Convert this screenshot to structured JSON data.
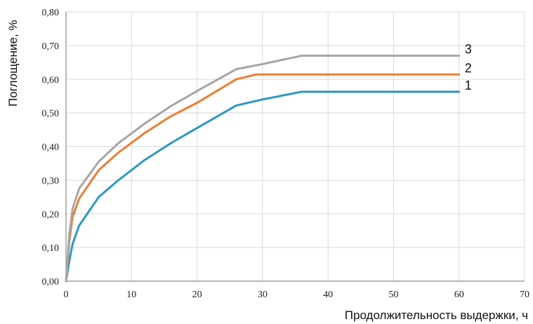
{
  "chart_data": {
    "type": "line",
    "title": "",
    "xlabel": "Продолжительность выдержки, ч",
    "ylabel": "Поглощение, %",
    "xlim": [
      0,
      70
    ],
    "ylim": [
      0,
      0.8
    ],
    "xticks": [
      0,
      10,
      20,
      30,
      40,
      50,
      60,
      70
    ],
    "yticks": [
      0,
      0.1,
      0.2,
      0.3,
      0.4,
      0.5,
      0.6,
      0.7,
      0.8
    ],
    "xtick_labels": [
      "0",
      "10",
      "20",
      "30",
      "40",
      "50",
      "60",
      "70"
    ],
    "ytick_labels": [
      "0,00",
      "0,10",
      "0,20",
      "0,30",
      "0,40",
      "0,50",
      "0,60",
      "0,70",
      "0,80"
    ],
    "grid": true,
    "legend": "end-of-line labels",
    "series": [
      {
        "name": "1",
        "color": "#2e97c4",
        "x": [
          0,
          0.5,
          1,
          2,
          5,
          8,
          12,
          16,
          20,
          26,
          30,
          36,
          40,
          50,
          60
        ],
        "y": [
          0,
          0.06,
          0.11,
          0.165,
          0.25,
          0.3,
          0.36,
          0.41,
          0.455,
          0.522,
          0.54,
          0.563,
          0.563,
          0.563,
          0.563
        ]
      },
      {
        "name": "2",
        "color": "#ed7d31",
        "x": [
          0,
          0.5,
          1,
          2,
          5,
          8,
          12,
          16,
          20,
          26,
          29,
          36,
          40,
          50,
          60
        ],
        "y": [
          0,
          0.12,
          0.19,
          0.245,
          0.33,
          0.382,
          0.44,
          0.49,
          0.53,
          0.6,
          0.614,
          0.614,
          0.614,
          0.614,
          0.614
        ]
      },
      {
        "name": "3",
        "color": "#a5a5a5",
        "x": [
          0,
          0.5,
          1,
          2,
          5,
          8,
          12,
          16,
          20,
          26,
          30,
          36,
          40,
          50,
          60
        ],
        "y": [
          0,
          0.14,
          0.215,
          0.275,
          0.355,
          0.41,
          0.468,
          0.52,
          0.565,
          0.63,
          0.645,
          0.67,
          0.67,
          0.67,
          0.67
        ]
      }
    ]
  }
}
